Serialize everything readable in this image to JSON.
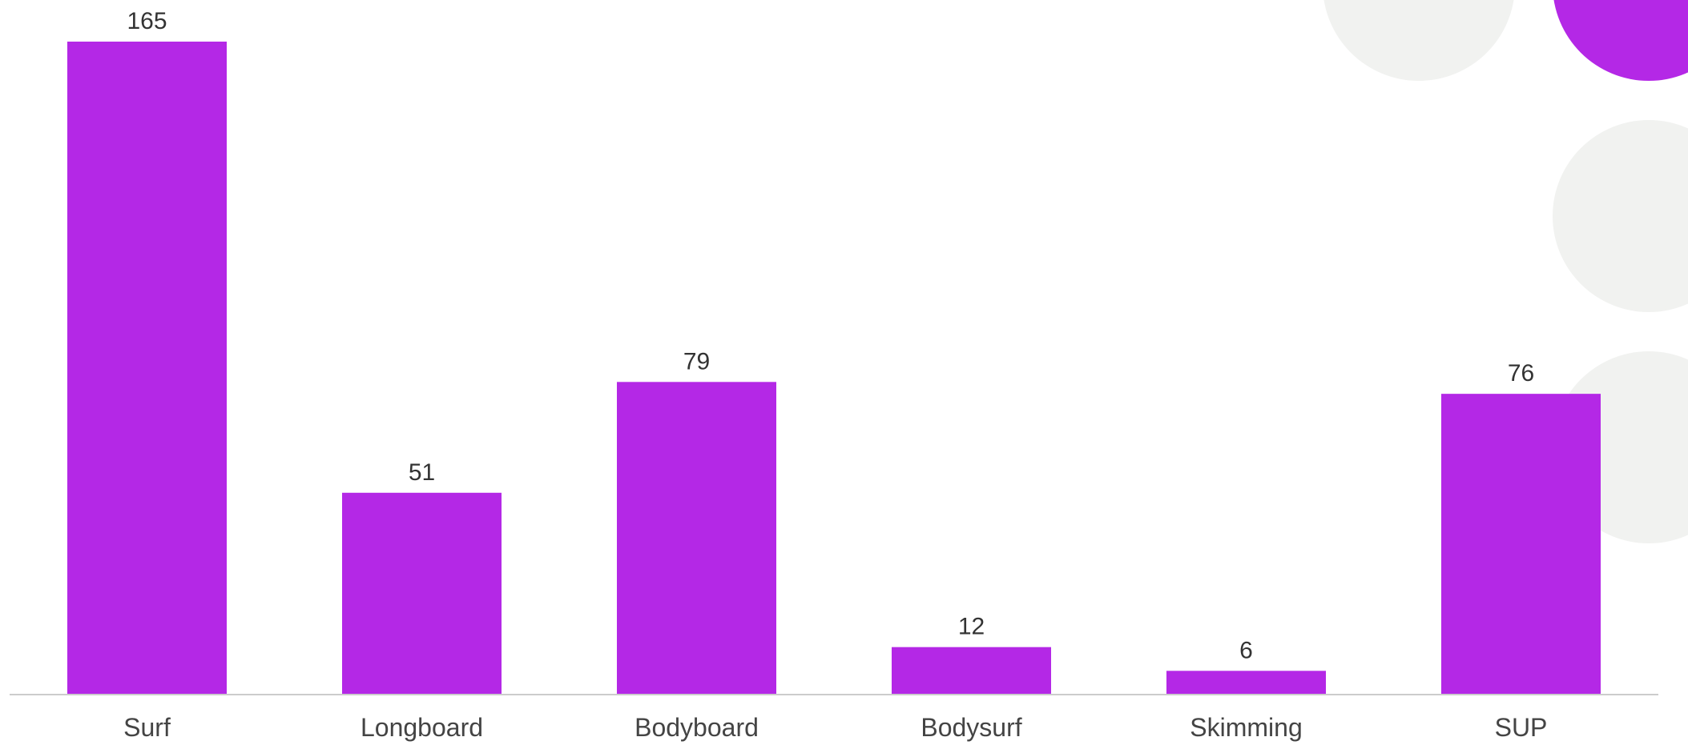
{
  "chart_data": {
    "type": "bar",
    "categories": [
      "Surf",
      "Longboard",
      "Bodyboard",
      "Bodysurf",
      "Skimming",
      "SUP"
    ],
    "values": [
      165,
      51,
      79,
      12,
      6,
      76
    ],
    "title": "",
    "xlabel": "",
    "ylabel": "",
    "ylim": [
      0,
      165
    ],
    "grid": false,
    "legend": "none"
  },
  "colors": {
    "bar": "#b428e6",
    "baseline": "#cccccc",
    "decor_gray": "#f1f2f0",
    "decor_purple": "#b428e6"
  }
}
